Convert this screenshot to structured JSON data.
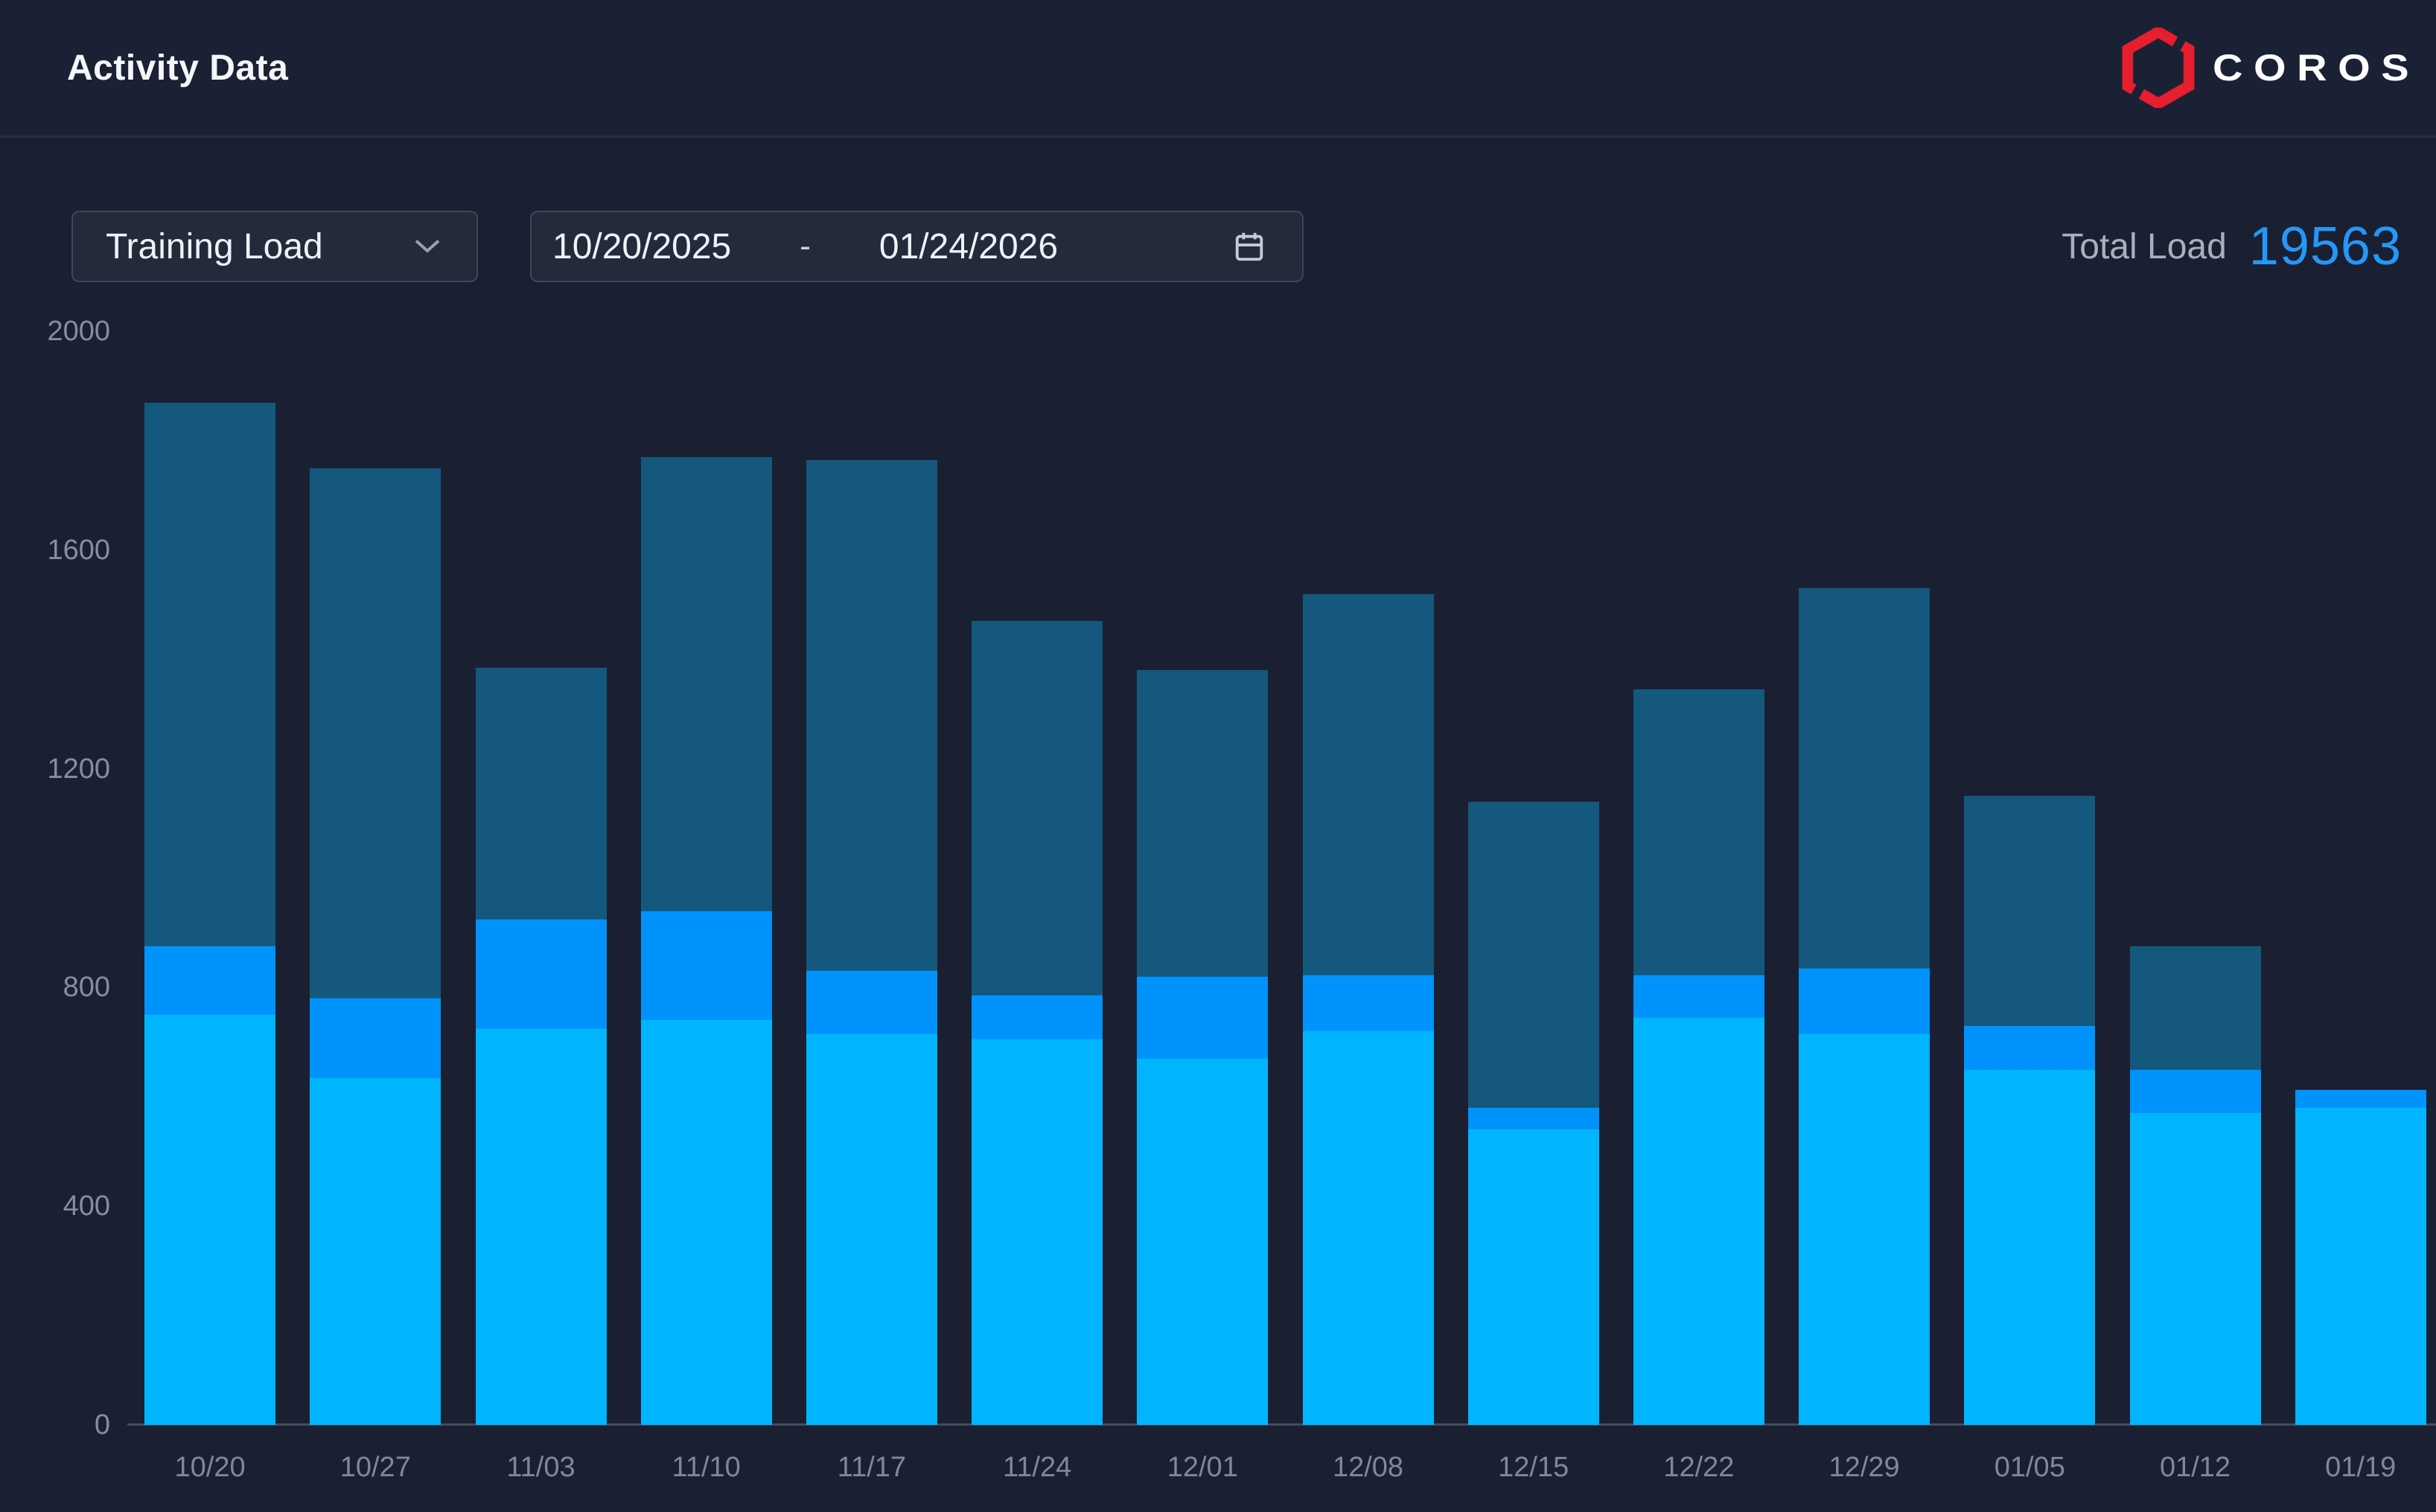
{
  "header": {
    "title": "Activity Data",
    "brand": "COROS"
  },
  "toolbar": {
    "metric_selected": "Training Load",
    "date_start": "10/20/2025",
    "date_separator": "-",
    "date_end": "01/24/2026",
    "total_label": "Total Load",
    "total_value": "19563"
  },
  "icons": {
    "dropdown": "chevron-down-icon",
    "calendar": "calendar-icon",
    "brand": "coros-hexagon-icon"
  },
  "colors": {
    "accent_blue": "#2498f8",
    "bar_bottom": "#00b5fd",
    "bar_middle": "#0093fb",
    "bar_top": "#14587d",
    "logo_red": "#e61e2d",
    "background": "#1a2032"
  },
  "chart_data": {
    "type": "bar",
    "stacked": true,
    "title": "",
    "xlabel": "",
    "ylabel": "",
    "categories": [
      "10/20",
      "10/27",
      "11/03",
      "11/10",
      "11/17",
      "11/24",
      "12/01",
      "12/08",
      "12/15",
      "12/22",
      "12/29",
      "01/05",
      "01/12",
      "01/19"
    ],
    "series": [
      {
        "name": "bottom",
        "color": "#00b5fd",
        "values": [
          750,
          635,
          725,
          740,
          715,
          705,
          670,
          720,
          540,
          745,
          715,
          650,
          570,
          580
        ]
      },
      {
        "name": "middle",
        "color": "#0093fb",
        "values": [
          125,
          145,
          200,
          200,
          115,
          80,
          150,
          102,
          40,
          77,
          120,
          80,
          80,
          33
        ]
      },
      {
        "name": "top",
        "color": "#14587d",
        "values": [
          995,
          970,
          460,
          830,
          935,
          685,
          560,
          698,
          560,
          523,
          695,
          420,
          225,
          0
        ]
      }
    ],
    "totals": [
      1870,
      1750,
      1385,
      1770,
      1765,
      1470,
      1380,
      1520,
      1140,
      1345,
      1530,
      1150,
      875,
      613
    ],
    "total_sum": 19563,
    "ylim": [
      0,
      2000
    ],
    "yticks": [
      0,
      400,
      800,
      1200,
      1600,
      2000
    ],
    "grid": false,
    "legend": false
  }
}
